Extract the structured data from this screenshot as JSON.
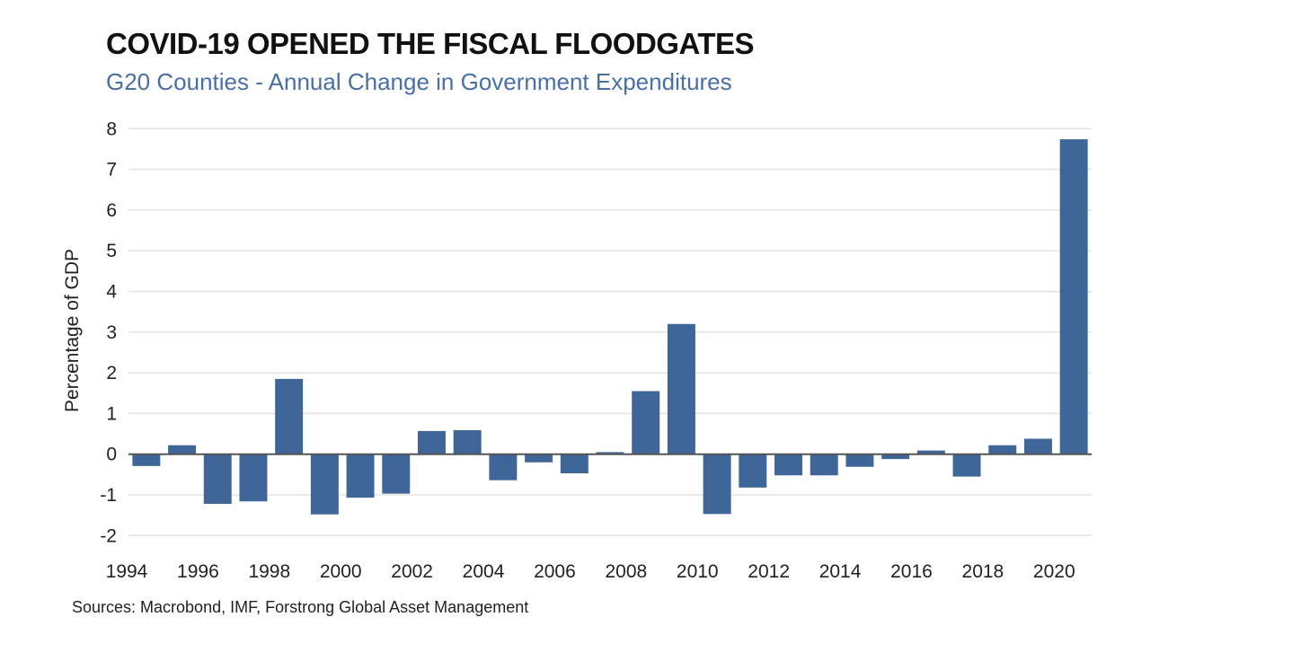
{
  "chart_data": {
    "type": "bar",
    "title": "COVID-19 OPENED THE FISCAL FLOODGATES",
    "subtitle": "G20 Counties - Annual Change in Government Expenditures",
    "xlabel": "",
    "ylabel": "Percentage of GDP",
    "source": "Sources: Macrobond, IMF, Forstrong Global Asset Management",
    "ylim": [
      -2,
      8
    ],
    "yticks": [
      -2,
      -1,
      0,
      1,
      2,
      3,
      4,
      5,
      6,
      7,
      8
    ],
    "grid": true,
    "bar_color": "#3f6699",
    "categories": [
      "1994",
      "1995",
      "1996",
      "1997",
      "1998",
      "1999",
      "2000",
      "2001",
      "2002",
      "2003",
      "2004",
      "2005",
      "2006",
      "2007",
      "2008",
      "2009",
      "2010",
      "2011",
      "2012",
      "2013",
      "2014",
      "2015",
      "2016",
      "2017",
      "2018",
      "2019",
      "2020"
    ],
    "xtick_labels": [
      "1994",
      "1996",
      "1998",
      "2000",
      "2002",
      "2004",
      "2006",
      "2008",
      "2010",
      "2012",
      "2014",
      "2016",
      "2018",
      "2020"
    ],
    "values": [
      -0.29,
      0.22,
      -1.22,
      -1.16,
      1.85,
      -1.48,
      -1.07,
      -0.97,
      0.57,
      0.59,
      -0.64,
      -0.2,
      -0.47,
      0.05,
      1.55,
      3.2,
      -1.47,
      -0.82,
      -0.52,
      -0.52,
      -0.31,
      -0.12,
      0.09,
      -0.55,
      0.22,
      0.38,
      7.74
    ]
  }
}
